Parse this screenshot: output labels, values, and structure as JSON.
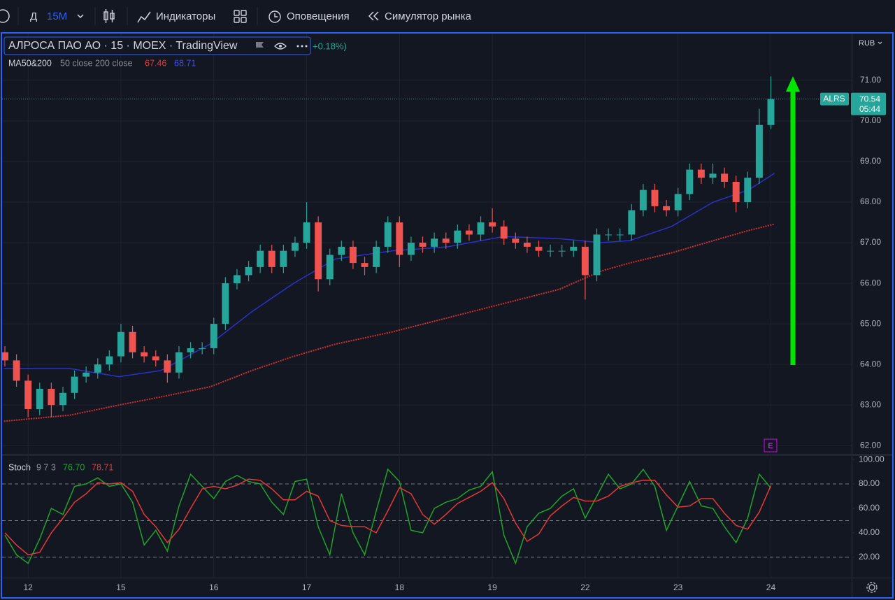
{
  "toolbar": {
    "interval_prefix": "Д",
    "interval": "15M",
    "indicators": "Индикаторы",
    "alerts": "Оповещения",
    "replay": "Симулятор рынка"
  },
  "chart_data": [
    {
      "type": "candlestick",
      "title": "АЛРОСА ПАО АО · 15 · MOEX · TradingView",
      "change": "+0.18%)",
      "indicator_name": "MA50&200",
      "indicator_params": "50 close 200 close",
      "currency": "RUB",
      "symbol": "ALRS",
      "timer": "05:44",
      "event_marker": "E",
      "up_color": "#26a69a",
      "down_color": "#ef5350",
      "grid": true,
      "xlim": [
        -0.28,
        8.87
      ],
      "ylim": [
        61.78,
        72.17
      ],
      "xticks": [
        {
          "value": 0,
          "label": "12"
        },
        {
          "value": 1,
          "label": "15"
        },
        {
          "value": 2,
          "label": "16"
        },
        {
          "value": 3,
          "label": "17"
        },
        {
          "value": 4,
          "label": "18"
        },
        {
          "value": 5,
          "label": "19"
        },
        {
          "value": 6,
          "label": "22"
        },
        {
          "value": 7,
          "label": "23"
        },
        {
          "value": 8,
          "label": "24"
        }
      ],
      "yticks": [
        {
          "value": 62,
          "label": "62.00"
        },
        {
          "value": 63,
          "label": "63.00"
        },
        {
          "value": 64,
          "label": "64.00"
        },
        {
          "value": 65,
          "label": "65.00"
        },
        {
          "value": 66,
          "label": "66.00"
        },
        {
          "value": 67,
          "label": "67.00"
        },
        {
          "value": 68,
          "label": "68.00"
        },
        {
          "value": 69,
          "label": "69.00"
        },
        {
          "value": 70,
          "label": "70.00"
        },
        {
          "value": 71,
          "label": "71.00"
        }
      ],
      "x": [
        -0.25,
        -0.125,
        0,
        0.125,
        0.25,
        0.375,
        0.5,
        0.625,
        0.75,
        0.875,
        1,
        1.125,
        1.25,
        1.375,
        1.5,
        1.625,
        1.75,
        1.875,
        2,
        2.125,
        2.25,
        2.375,
        2.5,
        2.625,
        2.75,
        2.875,
        3,
        3.125,
        3.25,
        3.375,
        3.5,
        3.625,
        3.75,
        3.875,
        4,
        4.125,
        4.25,
        4.375,
        4.5,
        4.625,
        4.75,
        4.875,
        5,
        5.125,
        5.25,
        5.375,
        5.5,
        5.625,
        5.75,
        5.875,
        6,
        6.125,
        6.25,
        6.375,
        6.5,
        6.625,
        6.75,
        6.875,
        7,
        7.125,
        7.25,
        7.375,
        7.5,
        7.625,
        7.75,
        7.875,
        8
      ],
      "open": [
        64.3,
        64.1,
        63.6,
        62.9,
        63.4,
        63.0,
        63.3,
        63.7,
        63.8,
        64.0,
        64.2,
        64.8,
        64.3,
        64.2,
        64.1,
        63.8,
        64.3,
        64.4,
        64.4,
        65.0,
        66.0,
        66.2,
        66.4,
        66.8,
        66.4,
        66.8,
        67.0,
        67.5,
        66.1,
        66.7,
        66.9,
        66.5,
        66.4,
        66.9,
        67.5,
        66.7,
        67.0,
        66.9,
        67.1,
        67.0,
        67.3,
        67.2,
        67.5,
        67.4,
        67.1,
        67.0,
        66.9,
        66.8,
        66.8,
        66.8,
        66.9,
        66.2,
        67.2,
        67.2,
        67.2,
        67.8,
        68.3,
        67.9,
        67.8,
        68.2,
        68.8,
        68.6,
        68.7,
        68.5,
        68.0,
        68.6,
        69.9
      ],
      "high": [
        64.45,
        64.25,
        63.75,
        63.55,
        63.55,
        63.45,
        63.85,
        63.95,
        64.15,
        64.35,
        65.0,
        64.95,
        64.45,
        64.35,
        64.25,
        64.45,
        64.55,
        64.55,
        65.15,
        66.15,
        66.35,
        66.55,
        66.95,
        66.95,
        66.95,
        67.15,
        68.0,
        67.65,
        66.85,
        67.05,
        67.05,
        66.65,
        67.05,
        67.65,
        67.65,
        67.15,
        67.15,
        67.25,
        67.25,
        67.45,
        67.45,
        67.65,
        67.85,
        67.55,
        67.25,
        67.15,
        67.05,
        66.95,
        66.95,
        67.05,
        67.05,
        67.35,
        67.35,
        67.35,
        67.95,
        68.45,
        68.45,
        68.05,
        68.35,
        68.95,
        68.95,
        68.95,
        68.85,
        68.65,
        68.75,
        70.3,
        71.1
      ],
      "low": [
        63.95,
        63.45,
        62.7,
        62.75,
        62.7,
        62.85,
        63.15,
        63.55,
        63.65,
        63.85,
        64.05,
        64.15,
        64.05,
        63.95,
        63.55,
        63.65,
        64.15,
        64.25,
        64.25,
        64.85,
        65.85,
        66.05,
        66.25,
        66.25,
        66.25,
        66.65,
        66.85,
        65.8,
        65.95,
        66.55,
        66.35,
        66.2,
        66.25,
        66.75,
        66.4,
        66.55,
        66.75,
        66.75,
        66.85,
        66.85,
        67.05,
        67.05,
        67.25,
        66.95,
        66.85,
        66.75,
        66.65,
        66.65,
        66.65,
        66.65,
        65.6,
        66.05,
        67.05,
        67.05,
        67.05,
        67.65,
        67.75,
        67.65,
        67.65,
        68.05,
        68.45,
        68.45,
        68.35,
        67.75,
        67.85,
        68.45,
        69.8
      ],
      "close": [
        64.1,
        63.6,
        62.9,
        63.4,
        63.0,
        63.3,
        63.7,
        63.8,
        64.0,
        64.2,
        64.8,
        64.3,
        64.2,
        64.1,
        63.8,
        64.3,
        64.4,
        64.4,
        65.0,
        66.0,
        66.2,
        66.4,
        66.8,
        66.4,
        66.8,
        67.0,
        67.5,
        66.1,
        66.7,
        66.9,
        66.5,
        66.4,
        66.9,
        67.5,
        66.7,
        67.0,
        66.9,
        67.1,
        67.0,
        67.3,
        67.2,
        67.5,
        67.4,
        67.1,
        67.0,
        66.9,
        66.8,
        66.8,
        66.8,
        66.9,
        66.2,
        67.2,
        67.2,
        67.2,
        67.8,
        68.3,
        67.9,
        67.8,
        68.2,
        68.8,
        68.6,
        68.7,
        68.5,
        68.0,
        68.6,
        69.9,
        70.54
      ],
      "series": [
        {
          "color": "#2b31c8",
          "style": "solid",
          "x": [
            -0.26,
            0.45,
            0.98,
            1.43,
            1.96,
            2.41,
            2.86,
            3.31,
            3.92,
            4.52,
            5.12,
            5.72,
            6.17,
            6.48,
            6.93,
            7.38,
            7.76,
            8.04
          ],
          "values": [
            63.9,
            63.9,
            63.7,
            63.85,
            64.5,
            65.3,
            66.0,
            66.6,
            66.8,
            66.9,
            67.15,
            67.1,
            67.0,
            67.05,
            67.4,
            68.0,
            68.3,
            68.71
          ]
        },
        {
          "color": "#d32f2f",
          "style": "dotted",
          "x": [
            -0.26,
            0.45,
            0.98,
            1.43,
            1.96,
            2.41,
            2.86,
            3.31,
            3.92,
            4.52,
            5.12,
            5.72,
            6.17,
            6.48,
            6.93,
            7.38,
            7.76,
            8.04
          ],
          "values": [
            62.6,
            62.75,
            63.0,
            63.2,
            63.45,
            63.85,
            64.2,
            64.5,
            64.8,
            65.15,
            65.5,
            65.85,
            66.3,
            66.5,
            66.75,
            67.05,
            67.3,
            67.46
          ]
        }
      ]
    },
    {
      "type": "line",
      "title": "Stoch",
      "params": "9 7 3",
      "xlim": [
        -0.28,
        8.87
      ],
      "ylim": [
        3.3,
        103.5
      ],
      "levels": [
        80,
        50,
        20
      ],
      "yticks": [
        {
          "value": 20,
          "label": "20.00"
        },
        {
          "value": 40,
          "label": "40.00"
        },
        {
          "value": 60,
          "label": "60.00"
        },
        {
          "value": 80,
          "label": "80.00"
        },
        {
          "value": 100,
          "label": "100.00"
        }
      ],
      "x": [
        -0.25,
        -0.125,
        0,
        0.125,
        0.25,
        0.375,
        0.5,
        0.625,
        0.75,
        0.875,
        1,
        1.125,
        1.25,
        1.375,
        1.5,
        1.625,
        1.75,
        1.875,
        2,
        2.125,
        2.25,
        2.375,
        2.5,
        2.625,
        2.75,
        2.875,
        3,
        3.125,
        3.25,
        3.375,
        3.5,
        3.625,
        3.75,
        3.875,
        4,
        4.125,
        4.25,
        4.375,
        4.5,
        4.625,
        4.75,
        4.875,
        5,
        5.125,
        5.25,
        5.375,
        5.5,
        5.625,
        5.75,
        5.875,
        6,
        6.125,
        6.25,
        6.375,
        6.5,
        6.625,
        6.75,
        6.875,
        7,
        7.125,
        7.25,
        7.375,
        7.5,
        7.625,
        7.75,
        7.875,
        8
      ],
      "series": [
        {
          "color": "#1fa32a",
          "values": [
            38,
            22,
            15,
            35,
            60,
            55,
            78,
            80,
            85,
            78,
            80,
            65,
            30,
            42,
            25,
            62,
            88,
            78,
            68,
            82,
            87,
            82,
            80,
            65,
            55,
            82,
            84,
            45,
            22,
            72,
            40,
            22,
            58,
            92,
            82,
            42,
            40,
            60,
            65,
            68,
            75,
            78,
            90,
            38,
            15,
            45,
            56,
            60,
            70,
            76,
            52,
            70,
            88,
            76,
            80,
            92,
            78,
            42,
            62,
            82,
            62,
            60,
            45,
            32,
            52,
            88,
            76.7
          ],
          "value_labels": [
            null,
            null,
            null,
            null,
            null,
            null,
            null,
            null,
            null,
            null,
            null,
            null,
            null,
            null,
            null,
            null,
            null,
            null,
            null,
            null,
            null,
            null,
            null,
            null,
            null,
            null,
            null,
            null,
            null,
            null,
            null,
            null,
            null,
            null,
            null,
            null,
            null,
            null,
            null,
            null,
            null,
            null,
            null,
            null,
            null,
            null,
            null,
            null,
            null,
            null,
            null,
            null,
            null,
            null,
            null,
            null,
            null,
            null,
            null,
            null,
            null,
            null,
            null,
            null,
            null,
            null,
            "76.70"
          ]
        },
        {
          "color": "#e53935",
          "values": [
            40,
            30,
            22,
            24,
            40,
            52,
            65,
            72,
            81,
            80,
            81,
            74,
            55,
            45,
            32,
            43,
            60,
            76,
            78,
            76,
            79,
            84,
            83,
            76,
            67,
            67,
            74,
            70,
            50,
            46,
            45,
            45,
            40,
            58,
            77,
            72,
            55,
            47,
            55,
            64,
            69,
            74,
            81,
            68,
            48,
            33,
            39,
            54,
            62,
            69,
            66,
            66,
            70,
            78,
            81,
            83,
            83,
            71,
            61,
            62,
            68,
            68,
            56,
            46,
            43,
            57,
            78.71
          ]
        }
      ]
    }
  ]
}
